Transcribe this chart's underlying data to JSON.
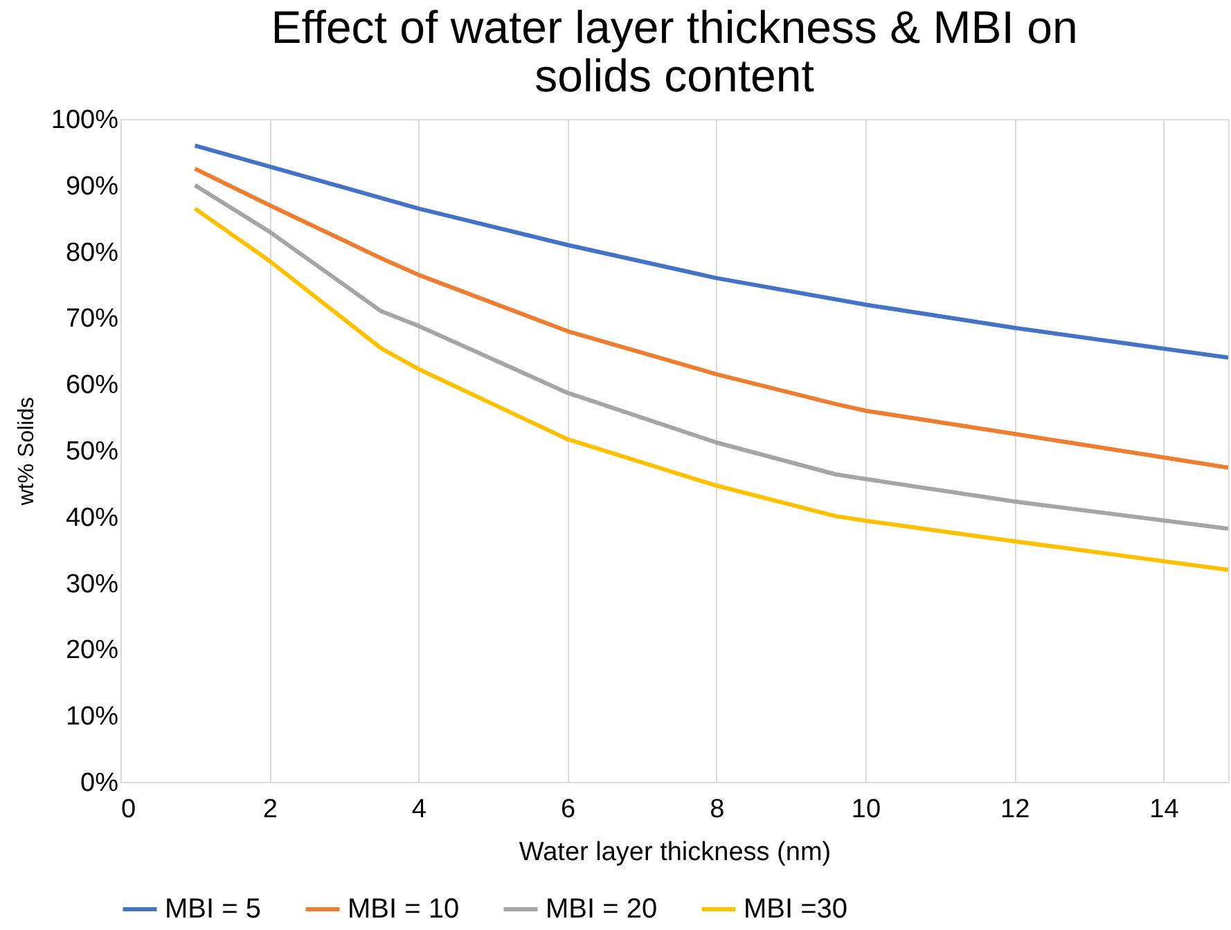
{
  "chart_data": {
    "type": "line",
    "title": [
      "Effect of water layer thickness & MBI on",
      "solids content"
    ],
    "xlabel": "Water layer thickness (nm)",
    "ylabel": "wt% Solids",
    "x": [
      1,
      2,
      3.5,
      4,
      6,
      8,
      9.6,
      10,
      12,
      14.87
    ],
    "series": [
      {
        "name": "MBI = 5",
        "color": "#4472c4",
        "x": [
          1,
          4,
          6,
          8,
          10,
          12,
          14.87
        ],
        "values": [
          96,
          86.5,
          81,
          76,
          72,
          68.5,
          64
        ]
      },
      {
        "name": "MBI = 10",
        "color": "#ed7d31",
        "values": [
          92.5,
          87,
          79,
          76.5,
          68,
          61.5,
          57,
          56,
          52.5,
          47.4
        ]
      },
      {
        "name": "MBI = 20",
        "color": "#a5a5a5",
        "values": [
          90,
          83,
          71,
          68.8,
          58.7,
          51.2,
          46.4,
          45.7,
          42.3,
          38.2
        ]
      },
      {
        "name": "MBI =30",
        "color": "#ffc000",
        "values": [
          86.5,
          78.6,
          65.4,
          62.3,
          51.7,
          44.7,
          40.1,
          39.4,
          36.3,
          32
        ]
      }
    ],
    "xlim": [
      0,
      14.87
    ],
    "xticks": [
      0,
      2,
      4,
      6,
      8,
      10,
      12,
      14
    ],
    "ylim": [
      0,
      100
    ],
    "yticks": [
      {
        "value": 0,
        "label": "0%"
      },
      {
        "value": 10,
        "label": "10%"
      },
      {
        "value": 20,
        "label": "20%"
      },
      {
        "value": 30,
        "label": "30%"
      },
      {
        "value": 40,
        "label": "40%"
      },
      {
        "value": 50,
        "label": "50%"
      },
      {
        "value": 60,
        "label": "60%"
      },
      {
        "value": 70,
        "label": "70%"
      },
      {
        "value": 80,
        "label": "80%"
      },
      {
        "value": 90,
        "label": "90%"
      },
      {
        "value": 100,
        "label": "100%"
      }
    ],
    "grid": "x",
    "legend": "bottom",
    "marker": "none",
    "line_style": "solid"
  }
}
